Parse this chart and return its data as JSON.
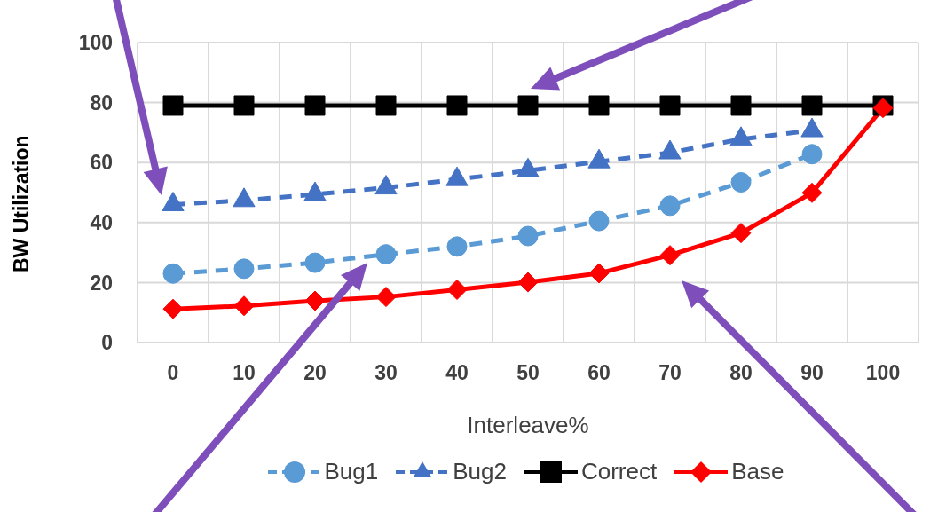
{
  "chart_data": {
    "type": "line",
    "xlabel": "Interleave%",
    "ylabel": "BW Utilization",
    "categories": [
      "0",
      "10",
      "20",
      "30",
      "40",
      "50",
      "60",
      "70",
      "80",
      "90",
      "100"
    ],
    "ylim": [
      0,
      100
    ],
    "yticks": [
      0,
      20,
      40,
      60,
      80,
      100
    ],
    "grid": true,
    "legend": "bottom",
    "series": [
      {
        "name": "Bug1",
        "color": "#5b9bd5",
        "marker": "circle",
        "line_style": "dashed",
        "values": [
          23,
          24.6,
          26.6,
          29.4,
          32,
          35.5,
          40.5,
          45.6,
          53.4,
          62.8,
          null
        ]
      },
      {
        "name": "Bug2",
        "color": "#4472c4",
        "marker": "triangle",
        "line_style": "dashed",
        "values": [
          46,
          47.4,
          49.4,
          51.6,
          54.4,
          57.3,
          60.3,
          63.3,
          67.8,
          70.7,
          null
        ]
      },
      {
        "name": "Correct",
        "color": "#000000",
        "marker": "square",
        "line_style": "solid",
        "values": [
          79,
          79,
          79,
          79,
          79,
          79,
          79,
          79,
          79,
          79,
          79
        ]
      },
      {
        "name": "Base",
        "color": "#ff0000",
        "marker": "diamond",
        "line_style": "solid",
        "values": [
          11.2,
          12.2,
          13.9,
          15.2,
          17.6,
          20.1,
          23.1,
          29.1,
          36.5,
          49.9,
          78.2
        ]
      }
    ]
  }
}
